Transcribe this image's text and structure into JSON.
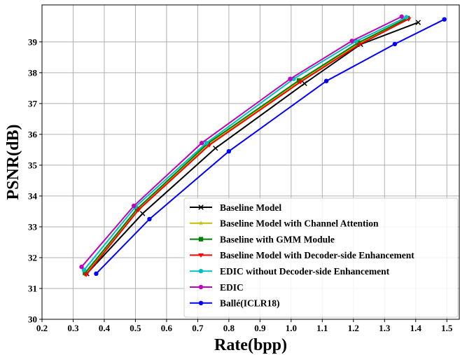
{
  "chart_data": {
    "type": "line",
    "xlabel": "Rate(bpp)",
    "ylabel": "PSNR(dB)",
    "xlim": [
      0.2,
      1.54
    ],
    "ylim": [
      30,
      40.2
    ],
    "xticks": [
      "0.2",
      "0.3",
      "0.4",
      "0.5",
      "0.6",
      "0.7",
      "0.8",
      "0.9",
      "1.0",
      "1.1",
      "1.2",
      "1.3",
      "1.4",
      "1.5"
    ],
    "yticks": [
      "30",
      "31",
      "32",
      "33",
      "34",
      "35",
      "36",
      "37",
      "38",
      "39"
    ],
    "grid": true,
    "legend_position": "lower-right",
    "series": [
      {
        "name": "Baseline Model",
        "color": "#000000",
        "marker": "x",
        "x": [
          0.344,
          0.523,
          0.757,
          1.043,
          1.223,
          1.408
        ],
        "y": [
          31.48,
          33.43,
          35.55,
          37.65,
          38.92,
          39.63
        ]
      },
      {
        "name": "Baseline Model with Channel Attention",
        "color": "#bfbf00",
        "marker": "star",
        "x": [
          0.34,
          0.508,
          0.738,
          1.028,
          1.218,
          1.375
        ],
        "y": [
          31.47,
          33.6,
          35.68,
          37.73,
          38.95,
          39.76
        ]
      },
      {
        "name": "Baseline with GMM Module",
        "color": "#008000",
        "marker": "square",
        "x": [
          0.338,
          0.505,
          0.732,
          1.025,
          1.215,
          1.374
        ],
        "y": [
          31.5,
          33.58,
          35.7,
          37.75,
          38.97,
          39.77
        ]
      },
      {
        "name": "Baseline Model with Decoder-side Enhancement",
        "color": "#ff0000",
        "marker": "triangle-down",
        "x": [
          0.342,
          0.51,
          0.737,
          1.03,
          1.22,
          1.377
        ],
        "y": [
          31.45,
          33.55,
          35.65,
          37.7,
          38.92,
          39.74
        ]
      },
      {
        "name": "EDIC without Decoder-side Enhancement",
        "color": "#00bfbf",
        "marker": "circle",
        "x": [
          0.335,
          0.5,
          0.728,
          1.008,
          1.208,
          1.37
        ],
        "y": [
          31.6,
          33.65,
          35.72,
          37.8,
          39.02,
          39.8
        ]
      },
      {
        "name": "EDIC",
        "color": "#bf00bf",
        "marker": "circle",
        "x": [
          0.327,
          0.495,
          0.713,
          0.997,
          1.195,
          1.355
        ],
        "y": [
          31.7,
          33.68,
          35.72,
          37.8,
          39.03,
          39.82
        ]
      },
      {
        "name": "Ballé(ICLR18)",
        "color": "#0000ff",
        "marker": "circle",
        "x": [
          0.374,
          0.545,
          0.8,
          1.113,
          1.333,
          1.492
        ],
        "y": [
          31.48,
          33.25,
          35.45,
          37.73,
          38.93,
          39.73
        ]
      }
    ]
  }
}
